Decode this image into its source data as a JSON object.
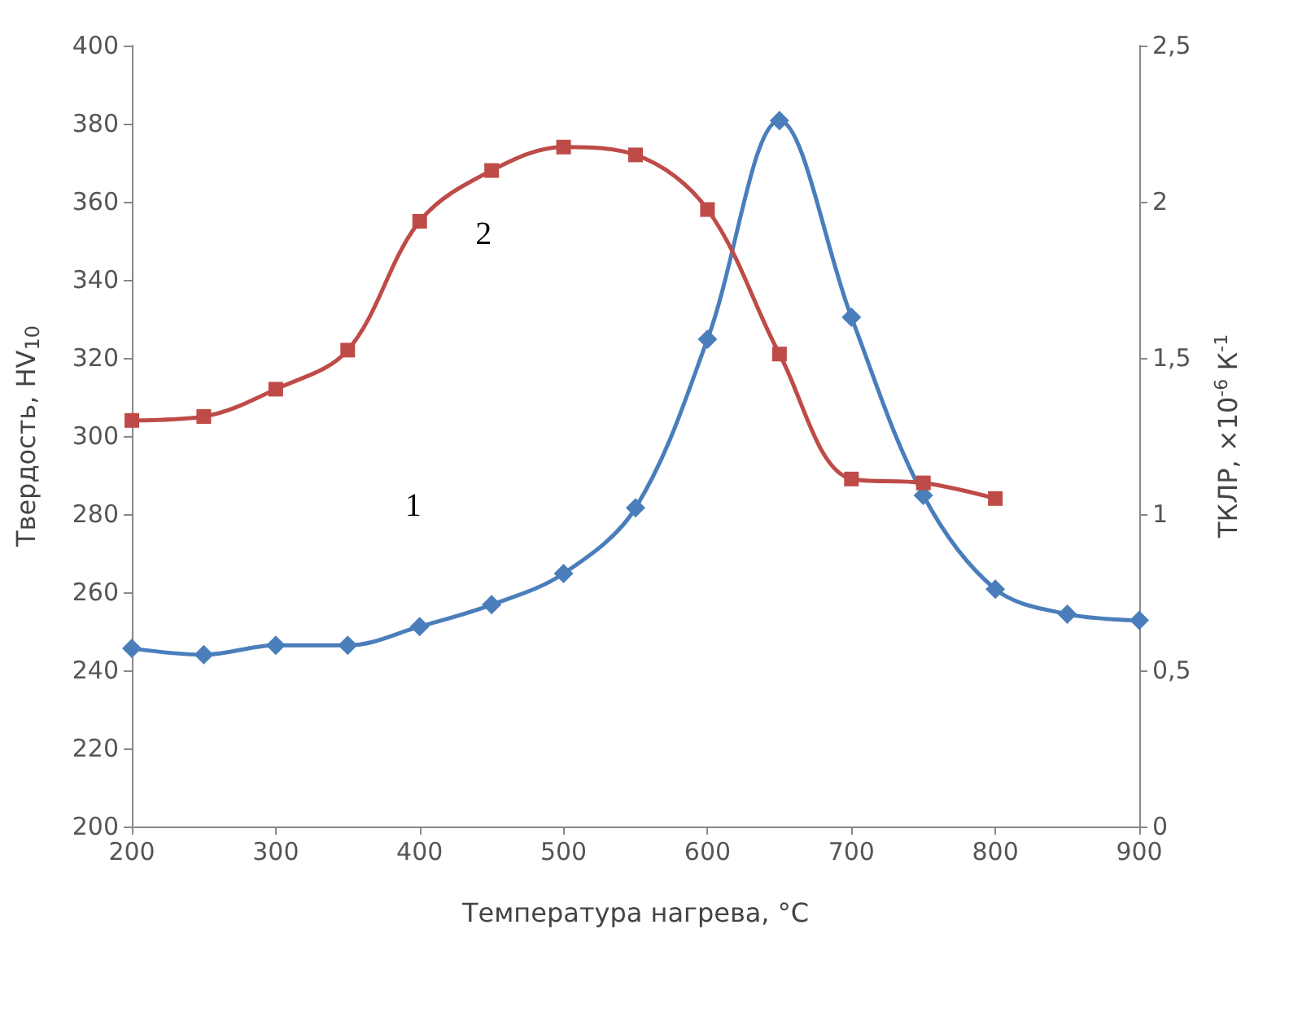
{
  "chart_data": {
    "type": "line",
    "xlabel": "Температура нагрева, °C",
    "ylabel": "Твердость, HV$_{10}$",
    "y2label": "ТКЛР, ×10$^{-6}$ К$^{-1}$",
    "x": [
      200,
      250,
      300,
      350,
      400,
      450,
      500,
      550,
      600,
      650,
      700,
      750,
      800,
      850,
      900
    ],
    "xlim": [
      200,
      900
    ],
    "xticks": [
      200,
      300,
      400,
      500,
      600,
      700,
      800,
      900
    ],
    "ylim": [
      200,
      400
    ],
    "yticks": [
      200,
      220,
      240,
      260,
      280,
      300,
      320,
      340,
      360,
      380,
      400
    ],
    "y2lim": [
      0,
      2.5
    ],
    "y2ticks": [
      0,
      {
        "value": 0.5,
        "label": "0,5"
      },
      1,
      {
        "value": 1.5,
        "label": "1,5"
      },
      2,
      {
        "value": 2.5,
        "label": "2,5"
      }
    ],
    "grid": false,
    "series": [
      {
        "name": "1",
        "color": "#4a7ebb",
        "marker": "diamond",
        "axis": "y2",
        "values": [
          0.57,
          0.55,
          0.58,
          0.58,
          0.64,
          0.71,
          0.81,
          1.02,
          1.56,
          2.26,
          1.63,
          1.06,
          0.76,
          0.68,
          0.66
        ]
      },
      {
        "name": "2",
        "color": "#be4b48",
        "marker": "square",
        "values": [
          304,
          305,
          312,
          322,
          355,
          368,
          374,
          372,
          358,
          321,
          289,
          288,
          284,
          null,
          null
        ]
      }
    ]
  }
}
